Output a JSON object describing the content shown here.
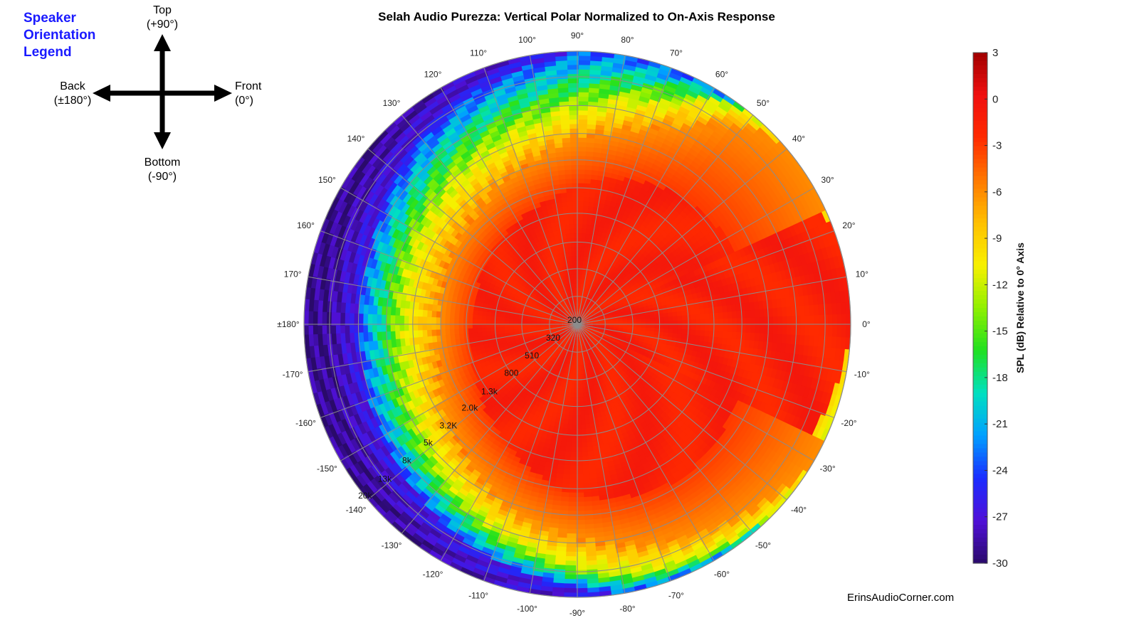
{
  "legend": {
    "title_lines": [
      "Speaker",
      "Orientation",
      "Legend"
    ],
    "top": [
      "Top",
      "(+90°)"
    ],
    "bottom": [
      "Bottom",
      "(-90°)"
    ],
    "back": [
      "Back",
      "(±180°)"
    ],
    "front": [
      "Front",
      "(0°)"
    ]
  },
  "watermark": "ErinsAudioCorner.com",
  "chart_data": {
    "type": "heatmap",
    "projection": "polar",
    "title": "Selah Audio Purezza: Vertical Polar Normalized to On-Axis Response",
    "angle_ticks": [
      "0°",
      "10°",
      "20°",
      "30°",
      "40°",
      "50°",
      "60°",
      "70°",
      "80°",
      "90°",
      "100°",
      "110°",
      "120°",
      "130°",
      "140°",
      "150°",
      "160°",
      "170°",
      "±180°",
      "-170°",
      "-160°",
      "-150°",
      "-140°",
      "-130°",
      "-120°",
      "-110°",
      "-100°",
      "-90°",
      "-80°",
      "-70°",
      "-60°",
      "-50°",
      "-40°",
      "-30°",
      "-20°",
      "-10°"
    ],
    "angle_values": [
      0,
      10,
      20,
      30,
      40,
      50,
      60,
      70,
      80,
      90,
      100,
      110,
      120,
      130,
      140,
      150,
      160,
      170,
      180,
      -170,
      -160,
      -150,
      -140,
      -130,
      -120,
      -110,
      -100,
      -90,
      -80,
      -70,
      -60,
      -50,
      -40,
      -30,
      -20,
      -10
    ],
    "radial_axis": {
      "quantity": "frequency (Hz)",
      "scale": "log",
      "ticks": [
        "200",
        "320",
        "510",
        "800",
        "1.3k",
        "2.0k",
        "3.2K",
        "5k",
        "8k",
        "13k",
        "20k"
      ],
      "tick_values": [
        200,
        320,
        510,
        800,
        1300,
        2000,
        3200,
        5000,
        8000,
        13000,
        20000
      ],
      "range": [
        200,
        20000
      ]
    },
    "colorbar": {
      "label": "SPL (dB) Relative to 0° Axis",
      "ticks": [
        3,
        0,
        -3,
        -6,
        -9,
        -12,
        -15,
        -18,
        -21,
        -24,
        -27,
        -30
      ],
      "range": [
        -30,
        3
      ],
      "colormap": [
        "#2a0a6a",
        "#5010d8",
        "#1a2cff",
        "#00a0ff",
        "#00e0c0",
        "#20e020",
        "#90f000",
        "#f8f000",
        "#ffc000",
        "#ff7800",
        "#ff2a00",
        "#f01010",
        "#a00000"
      ]
    },
    "approx_contours_dB": {
      "0": [
        20000,
        20000,
        20000,
        16000,
        13000,
        12000,
        11000,
        10000,
        10000,
        9500,
        9000,
        9000,
        8500,
        8000,
        7600,
        7000,
        6400,
        6000,
        6000,
        6300,
        6600,
        7000,
        7600,
        8000,
        8500,
        9000,
        10000,
        11000,
        12000,
        12500,
        13000,
        13500,
        14000,
        15000,
        16500,
        18500
      ],
      "-3": [
        3500,
        3700,
        4000,
        3700,
        3400,
        3200,
        3000,
        2700,
        2400,
        2100,
        1800,
        1600,
        1500,
        1400,
        1300,
        1250,
        1200,
        1200,
        1200,
        1250,
        1300,
        1400,
        1600,
        1800,
        2100,
        2500,
        3000,
        3500,
        3900,
        4300,
        4500,
        4500,
        4300,
        4000,
        3700,
        3500
      ],
      "-6": [
        20000,
        20000,
        20000,
        20000,
        20000,
        16000,
        9000,
        6500,
        5200,
        4500,
        3700,
        3200,
        2800,
        2500,
        2300,
        2200,
        2100,
        2000,
        2000,
        2100,
        2300,
        2600,
        3000,
        3600,
        4300,
        5200,
        6200,
        7200,
        8400,
        9800,
        11500,
        13500,
        16000,
        20000,
        20000,
        20000
      ],
      "-12": [
        20000,
        20000,
        20000,
        20000,
        20000,
        20000,
        16000,
        11000,
        9000,
        7600,
        6500,
        5800,
        5200,
        4800,
        4400,
        4200,
        4000,
        3900,
        3800,
        3900,
        4200,
        4600,
        5200,
        6000,
        7000,
        8500,
        10000,
        12000,
        14000,
        15500,
        17000,
        18500,
        20000,
        20000,
        20000,
        20000
      ],
      "-24": [
        20000,
        20000,
        20000,
        20000,
        20000,
        20000,
        20000,
        20000,
        20000,
        20000,
        17000,
        15000,
        13000,
        11500,
        10000,
        9000,
        8300,
        8000,
        7700,
        7900,
        8300,
        8800,
        9500,
        10500,
        12000,
        13500,
        15000,
        17000,
        20000,
        20000,
        20000,
        20000,
        20000,
        20000,
        20000,
        20000
      ]
    },
    "grid": true
  }
}
